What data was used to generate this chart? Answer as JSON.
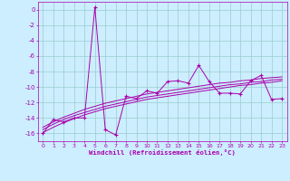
{
  "xlabel": "Windchill (Refroidissement éolien,°C)",
  "bg_color": "#cceeff",
  "line_color": "#aa00aa",
  "grid_color": "#99cccc",
  "x_data": [
    0,
    1,
    2,
    3,
    4,
    5,
    6,
    7,
    8,
    9,
    10,
    11,
    12,
    13,
    14,
    15,
    16,
    17,
    18,
    19,
    20,
    21,
    22,
    23
  ],
  "y_main": [
    -16.0,
    -14.2,
    -14.5,
    -14.0,
    -14.0,
    0.3,
    -15.5,
    -16.2,
    -11.2,
    -11.5,
    -10.5,
    -10.8,
    -9.3,
    -9.2,
    -9.5,
    -7.2,
    -9.3,
    -10.8,
    -10.8,
    -10.9,
    -9.2,
    -8.5,
    -11.6,
    -11.5
  ],
  "y_line1": [
    -15.5,
    -14.8,
    -14.2,
    -13.7,
    -13.3,
    -12.9,
    -12.5,
    -12.2,
    -11.9,
    -11.6,
    -11.3,
    -11.1,
    -10.9,
    -10.7,
    -10.5,
    -10.3,
    -10.1,
    -9.9,
    -9.7,
    -9.6,
    -9.4,
    -9.3,
    -9.1,
    -9.0
  ],
  "y_line2": [
    -15.9,
    -15.2,
    -14.6,
    -14.1,
    -13.6,
    -13.2,
    -12.8,
    -12.5,
    -12.2,
    -11.9,
    -11.6,
    -11.4,
    -11.2,
    -11.0,
    -10.8,
    -10.6,
    -10.4,
    -10.2,
    -10.0,
    -9.8,
    -9.7,
    -9.5,
    -9.4,
    -9.2
  ],
  "y_line3": [
    -15.2,
    -14.5,
    -13.9,
    -13.4,
    -12.9,
    -12.5,
    -12.1,
    -11.8,
    -11.5,
    -11.2,
    -10.9,
    -10.7,
    -10.5,
    -10.3,
    -10.1,
    -9.9,
    -9.7,
    -9.5,
    -9.4,
    -9.2,
    -9.1,
    -8.9,
    -8.8,
    -8.7
  ],
  "ylim": [
    -17,
    1
  ],
  "xlim": [
    -0.5,
    23.5
  ],
  "yticks": [
    0,
    -2,
    -4,
    -6,
    -8,
    -10,
    -12,
    -14,
    -16
  ],
  "xticks": [
    0,
    1,
    2,
    3,
    4,
    5,
    6,
    7,
    8,
    9,
    10,
    11,
    12,
    13,
    14,
    15,
    16,
    17,
    18,
    19,
    20,
    21,
    22,
    23
  ],
  "xtick_labels": [
    "0",
    "1",
    "2",
    "3",
    "4",
    "5",
    "6",
    "7",
    "8",
    "9",
    "10",
    "11",
    "12",
    "13",
    "14",
    "15",
    "16",
    "17",
    "18",
    "19",
    "20",
    "21",
    "22",
    "23"
  ]
}
